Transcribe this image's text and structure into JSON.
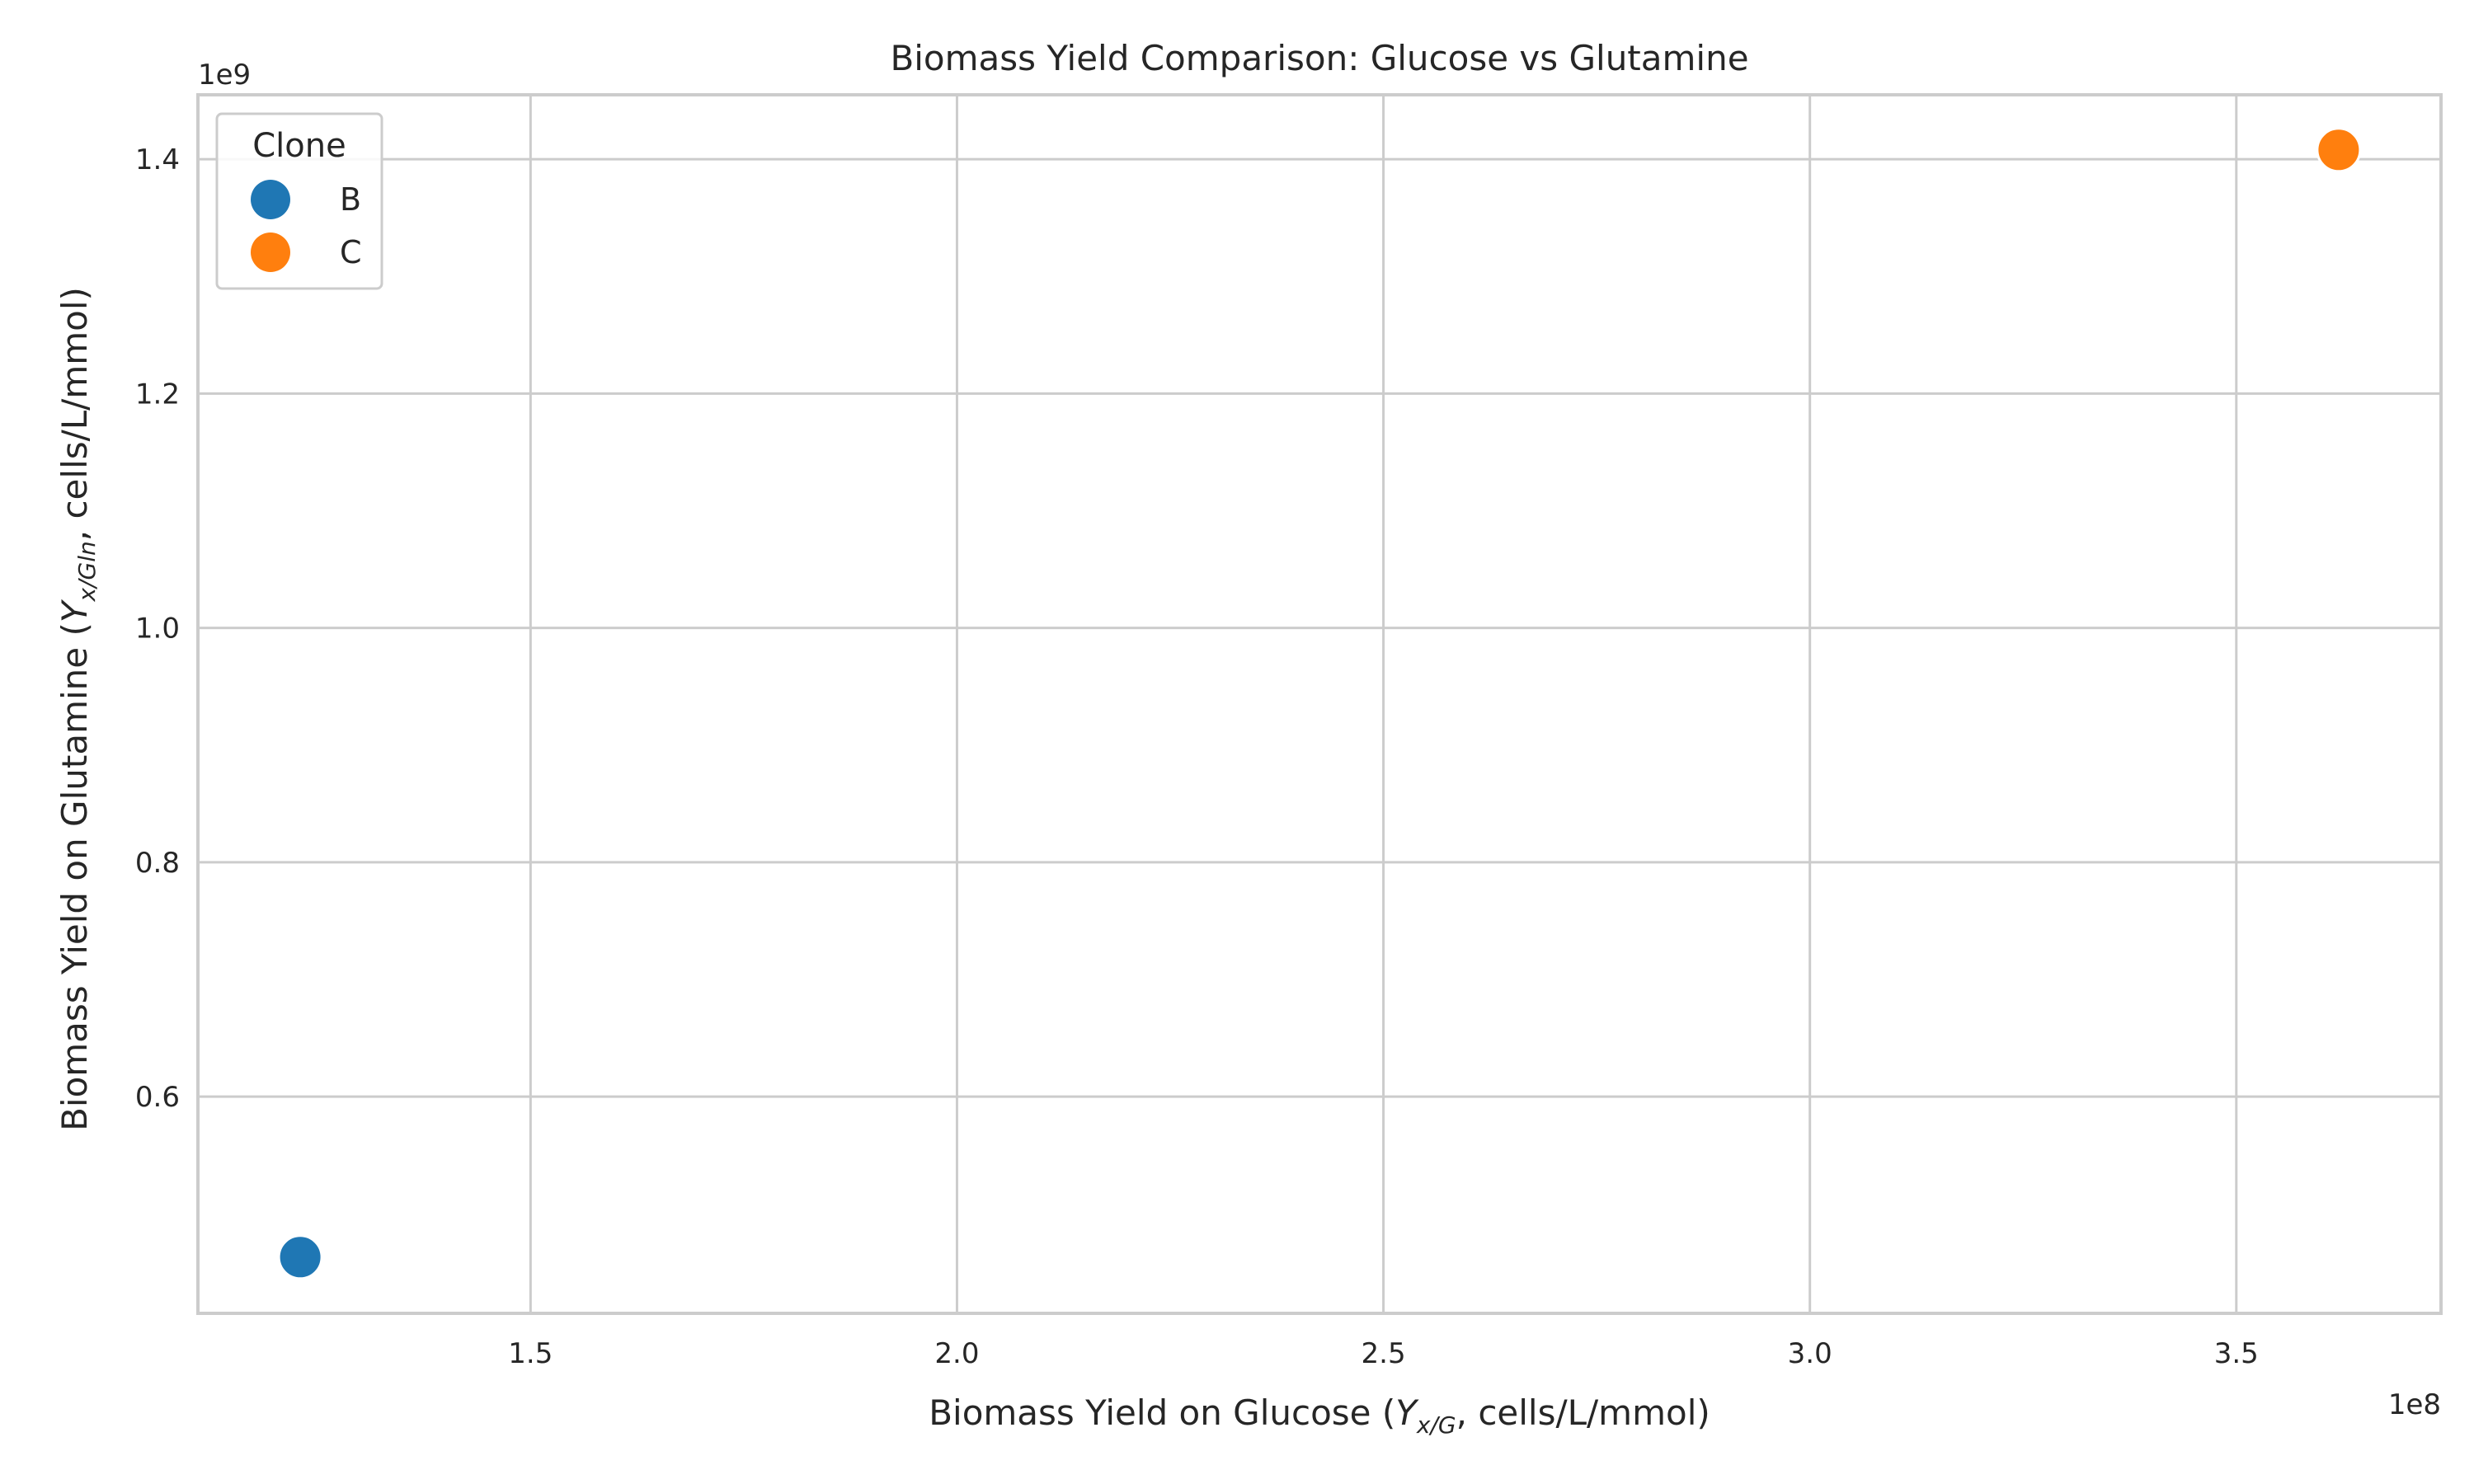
{
  "chart_data": {
    "type": "scatter",
    "title": "Biomass Yield Comparison: Glucose vs Glutamine",
    "xlabel": {
      "prefix": "Biomass Yield on Glucose (",
      "symbol": "Y",
      "subscript": "x/G",
      "suffix": ", cells/L/mmol)"
    },
    "ylabel": {
      "prefix": "Biomass Yield on Glutamine (",
      "symbol": "Y",
      "subscript": "x/Gln",
      "suffix": ", cells/L/mmol)"
    },
    "x_offset_label": "1e8",
    "y_offset_label": "1e9",
    "xlim": [
      111000000,
      374000000
    ],
    "ylim": [
      415000000,
      1455000000
    ],
    "x_ticks": [
      150000000,
      200000000,
      250000000,
      300000000,
      350000000
    ],
    "x_tick_labels": [
      "1.5",
      "2.0",
      "2.5",
      "3.0",
      "3.5"
    ],
    "y_ticks": [
      600000000,
      800000000,
      1000000000,
      1200000000,
      1400000000
    ],
    "y_tick_labels": [
      "0.6",
      "0.8",
      "1.0",
      "1.2",
      "1.4"
    ],
    "grid": true,
    "legend": {
      "title": "Clone",
      "placement": "top-left"
    },
    "series": [
      {
        "name": "B",
        "color": "#1f77b4",
        "x": [
          123000000
        ],
        "y": [
          463000000
        ]
      },
      {
        "name": "C",
        "color": "#ff7f0e",
        "x": [
          362000000
        ],
        "y": [
          1408000000
        ]
      }
    ]
  }
}
